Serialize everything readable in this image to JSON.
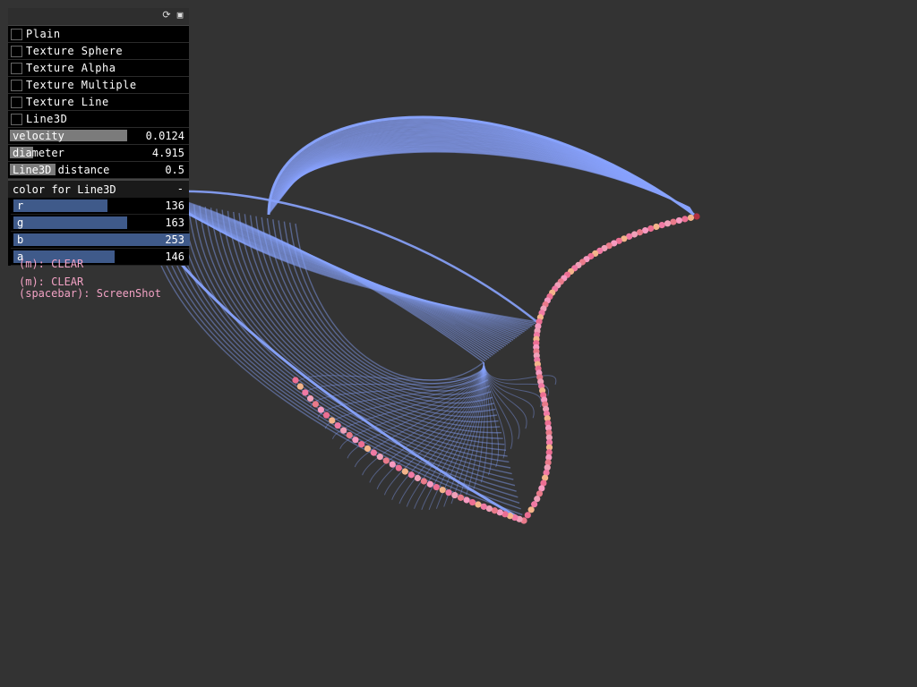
{
  "panel": {
    "header_icons": [
      "refresh-icon",
      "save-icon"
    ],
    "toggles": [
      {
        "label": "Plain",
        "checked": false
      },
      {
        "label": "Texture Sphere",
        "checked": false
      },
      {
        "label": "Texture Alpha",
        "checked": false
      },
      {
        "label": "Texture Multiple",
        "checked": false
      },
      {
        "label": "Texture Line",
        "checked": false
      },
      {
        "label": "Line3D",
        "checked": false
      }
    ],
    "sliders": [
      {
        "label": "velocity",
        "value": "0.0124",
        "fill_fraction": 0.65
      },
      {
        "label": "diameter",
        "value": "4.915",
        "fill_fraction": 0.13
      },
      {
        "label": "Line3D distance",
        "value": "0.5",
        "fill_fraction": 0.25
      }
    ],
    "color_group": {
      "title": "color for Line3D",
      "collapse_symbol": "-",
      "channels": [
        {
          "label": "r",
          "value": "136",
          "fill_fraction": 0.53
        },
        {
          "label": "g",
          "value": "163",
          "fill_fraction": 0.64
        },
        {
          "label": "b",
          "value": "253",
          "fill_fraction": 0.99
        },
        {
          "label": "a",
          "value": "146",
          "fill_fraction": 0.57
        }
      ]
    }
  },
  "hints": {
    "overlap": "(m): CLEAR",
    "line1": "(m): CLEAR",
    "line2": "(spacebar): ScreenShot"
  },
  "colors": {
    "background": "#333333",
    "line3d": "#88a3fd",
    "particle_pink": "#f07aa4",
    "particle_peach": "#f4b48a",
    "hint_text": "#f2a2c4"
  }
}
